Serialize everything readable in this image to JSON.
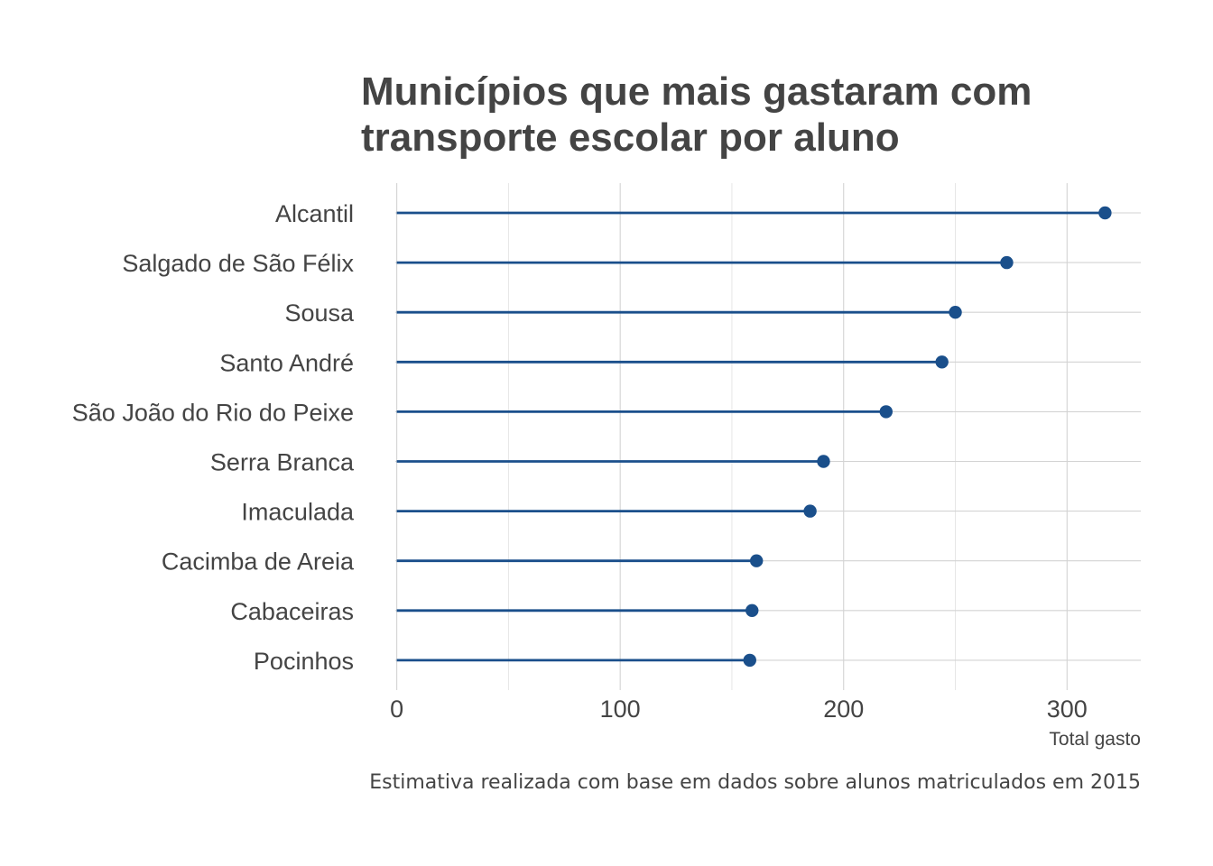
{
  "chart_data": {
    "type": "lollipop",
    "title": "Municípios que mais gastaram com transporte escolar por aluno",
    "title_lines": [
      "Municípios que mais gastaram com",
      "transporte escolar por aluno"
    ],
    "xlabel": "Total gasto",
    "ylabel": "",
    "caption": "Estimativa realizada com base em dados sobre alunos matriculados em 2015",
    "categories": [
      "Alcantil",
      "Salgado de São Félix",
      "Sousa",
      "Santo André",
      "São João do Rio do Peixe",
      "Serra Branca",
      "Imaculada",
      "Cacimba de Areia",
      "Cabaceiras",
      "Pocinhos"
    ],
    "values": [
      317,
      273,
      250,
      244,
      219,
      191,
      185,
      161,
      159,
      158
    ],
    "x_ticks": [
      0,
      100,
      200,
      300
    ],
    "xlim": [
      -16,
      333
    ],
    "grid": true,
    "legend": "none",
    "color": "#1a4f8b"
  }
}
